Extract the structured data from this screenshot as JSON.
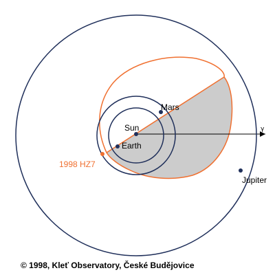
{
  "labels": {
    "mars": "Mars",
    "sun": "Sun",
    "earth": "Earth",
    "jupiter": "Jupiter",
    "asteroid": "1998 HZ7",
    "vernal_equinox": "γ"
  },
  "credit": "© 1998, Kleť Observatory, České Budějovice",
  "colors": {
    "planet_orbit": "#1f2f5a",
    "asteroid_orbit": "#f07030",
    "shaded_region": "#cccccc",
    "text": "#000000"
  }
}
